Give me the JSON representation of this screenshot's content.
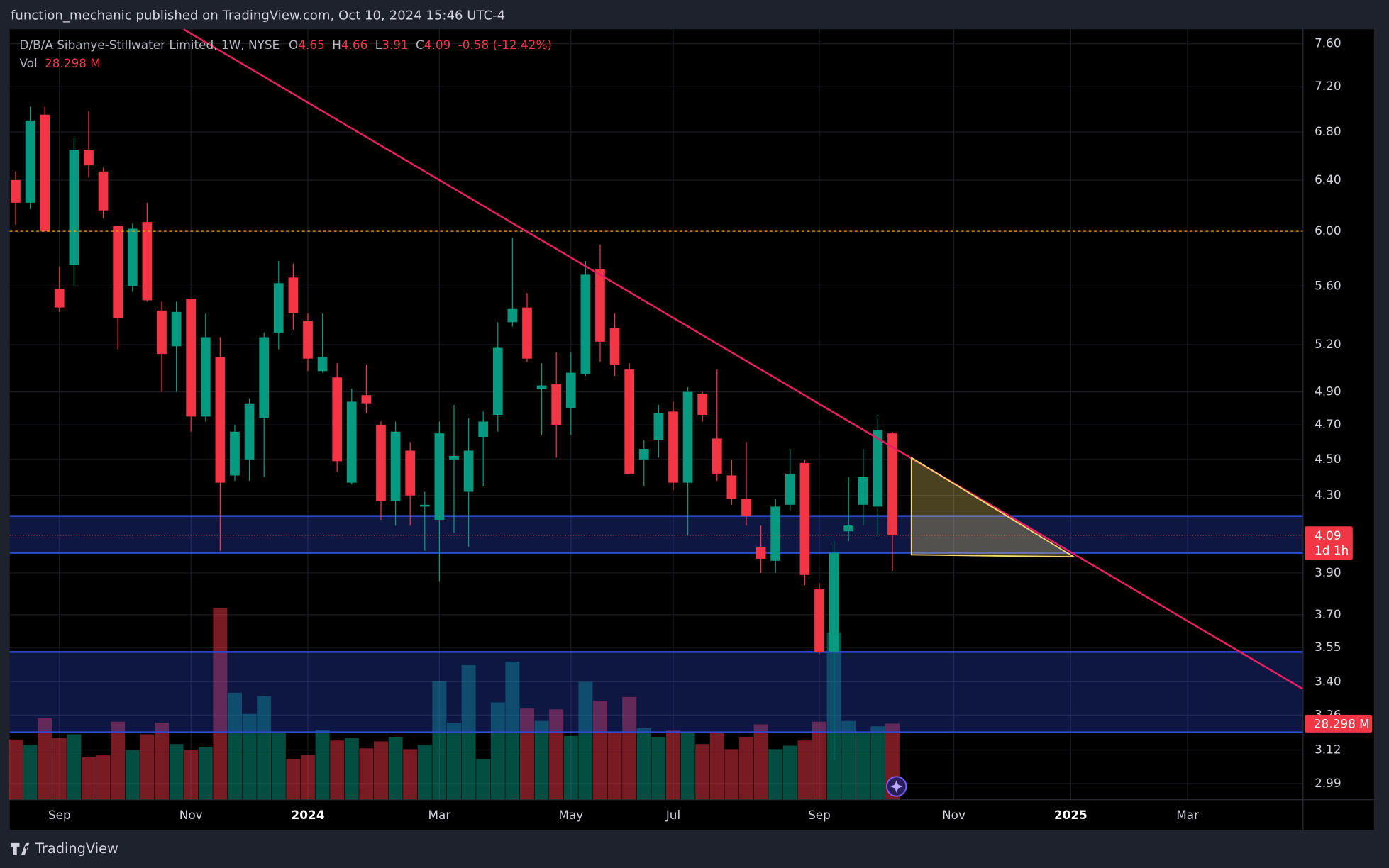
{
  "chart_data": {
    "type": "candlestick",
    "published": "function_mechanic published on TradingView.com, Oct 10, 2024 15:46 UTC-4",
    "legend": {
      "symbol": "D/B/A Sibanye-Stillwater Limited, 1W, NYSE",
      "ohlc_labels": [
        "O",
        "H",
        "L",
        "C"
      ],
      "change": "-0.58 (-12.42%)",
      "vol_label": "Vol",
      "vol_value_label": "28.298 M"
    },
    "countdown": "1d 1h",
    "brand": "TradingView",
    "up_color": "#089981",
    "down_color": "#f23645",
    "log_scale": true,
    "grid": true,
    "ylim": [
      2.93,
      7.74
    ],
    "yticks": [
      {
        "value": 7.6,
        "label": "7.60"
      },
      {
        "value": 7.2,
        "label": "7.20"
      },
      {
        "value": 6.8,
        "label": "6.80"
      },
      {
        "value": 6.4,
        "label": "6.40"
      },
      {
        "value": 6.0,
        "label": "6.00"
      },
      {
        "value": 5.6,
        "label": "5.60"
      },
      {
        "value": 5.2,
        "label": "5.20"
      },
      {
        "value": 4.9,
        "label": "4.90"
      },
      {
        "value": 4.7,
        "label": "4.70"
      },
      {
        "value": 4.5,
        "label": "4.50"
      },
      {
        "value": 4.3,
        "label": "4.30"
      },
      {
        "value": 3.9,
        "label": "3.90"
      },
      {
        "value": 3.7,
        "label": "3.70"
      },
      {
        "value": 3.55,
        "label": "3.55"
      },
      {
        "value": 3.4,
        "label": "3.40"
      },
      {
        "value": 3.26,
        "label": "3.26"
      },
      {
        "value": 3.12,
        "label": "3.12"
      },
      {
        "value": 2.99,
        "label": "2.99"
      }
    ],
    "xlim": [
      -0.4,
      88.1
    ],
    "xticks": [
      {
        "value": 3,
        "label": "Sep"
      },
      {
        "value": 12,
        "label": "Nov"
      },
      {
        "value": 20,
        "label": "2024"
      },
      {
        "value": 29,
        "label": "Mar"
      },
      {
        "value": 38,
        "label": "May"
      },
      {
        "value": 45,
        "label": "Jul"
      },
      {
        "value": 55,
        "label": "Sep"
      },
      {
        "value": 64.2,
        "label": "Nov"
      },
      {
        "value": 72.2,
        "label": "2025"
      },
      {
        "value": 80.2,
        "label": "Mar"
      }
    ],
    "candles": {
      "open": [
        6.4,
        6.22,
        6.95,
        5.58,
        5.75,
        6.65,
        6.47,
        6.04,
        5.6,
        6.07,
        5.43,
        5.19,
        5.51,
        4.75,
        5.12,
        4.41,
        4.5,
        4.74,
        5.28,
        5.66,
        5.36,
        5.03,
        4.99,
        4.37,
        4.88,
        4.7,
        4.27,
        4.55,
        4.24,
        4.17,
        4.5,
        4.32,
        4.63,
        4.76,
        5.35,
        5.45,
        4.92,
        4.95,
        4.8,
        5.01,
        5.72,
        5.31,
        5.04,
        4.5,
        4.61,
        4.78,
        4.37,
        4.89,
        4.62,
        4.41,
        4.28,
        4.03,
        3.96,
        4.25,
        4.48,
        3.82,
        3.53,
        4.11,
        4.25,
        4.24,
        4.65
      ],
      "high": [
        6.47,
        7.02,
        7.02,
        5.74,
        6.75,
        6.98,
        6.5,
        6.04,
        6.06,
        6.22,
        5.49,
        5.49,
        5.51,
        5.41,
        5.25,
        4.7,
        4.86,
        5.28,
        5.78,
        5.76,
        5.41,
        5.41,
        5.08,
        4.92,
        5.07,
        4.72,
        4.72,
        4.6,
        4.32,
        4.72,
        4.82,
        4.74,
        4.78,
        5.35,
        5.95,
        5.55,
        5.08,
        5.15,
        5.15,
        5.78,
        5.9,
        5.41,
        5.08,
        4.61,
        4.82,
        4.84,
        4.93,
        4.9,
        5.04,
        4.5,
        4.6,
        4.14,
        4.28,
        4.56,
        4.5,
        3.85,
        4.06,
        4.4,
        4.56,
        4.76,
        4.66
      ],
      "low": [
        6.05,
        6.17,
        6.0,
        5.42,
        5.6,
        6.42,
        6.1,
        5.17,
        5.56,
        5.49,
        4.9,
        4.9,
        4.66,
        4.72,
        4.01,
        4.38,
        4.38,
        4.4,
        5.17,
        5.3,
        5.03,
        5.02,
        4.43,
        4.36,
        4.77,
        4.17,
        4.14,
        4.14,
        4.01,
        3.86,
        4.1,
        4.03,
        4.35,
        4.66,
        5.32,
        5.09,
        4.64,
        4.51,
        4.64,
        5.0,
        5.09,
        5.0,
        4.42,
        4.35,
        4.51,
        4.33,
        4.09,
        4.72,
        4.38,
        4.25,
        4.14,
        3.9,
        3.9,
        4.22,
        3.84,
        3.52,
        3.08,
        4.06,
        4.14,
        4.09,
        3.91
      ],
      "close": [
        6.22,
        6.9,
        6.0,
        5.45,
        6.65,
        6.52,
        6.16,
        5.38,
        6.02,
        5.5,
        5.14,
        5.42,
        4.75,
        5.25,
        4.37,
        4.66,
        4.83,
        5.25,
        5.62,
        5.41,
        5.11,
        5.12,
        4.49,
        4.84,
        4.83,
        4.27,
        4.66,
        4.3,
        4.25,
        4.65,
        4.52,
        4.55,
        4.72,
        5.18,
        5.44,
        5.11,
        4.94,
        4.7,
        5.02,
        5.68,
        5.22,
        5.07,
        4.42,
        4.56,
        4.77,
        4.37,
        4.9,
        4.76,
        4.42,
        4.28,
        4.19,
        3.97,
        4.24,
        4.42,
        3.89,
        3.53,
        4.0,
        4.14,
        4.4,
        4.67,
        4.09
      ]
    },
    "volume": [
      22.4,
      20.4,
      30.3,
      23.0,
      24.3,
      15.8,
      16.5,
      29.0,
      18.4,
      24.3,
      28.6,
      20.7,
      18.4,
      19.7,
      71.4,
      39.8,
      31.9,
      38.5,
      25.0,
      15.1,
      16.8,
      26.0,
      22.0,
      23.0,
      19.1,
      21.7,
      23.4,
      18.8,
      20.4,
      44.1,
      28.6,
      50.0,
      15.1,
      36.2,
      51.3,
      33.9,
      29.3,
      33.6,
      23.7,
      43.8,
      36.8,
      25.3,
      38.2,
      26.6,
      23.4,
      25.7,
      24.7,
      20.7,
      24.7,
      18.8,
      23.4,
      28.0,
      18.8,
      20.1,
      22.0,
      29.0,
      62.2,
      29.3,
      25.0,
      27.3,
      28.298
    ],
    "volume_lim": [
      0,
      80
    ],
    "drawings": {
      "trendline": {
        "x": [
          11.5,
          88.06
        ],
        "y": [
          7.74,
          3.37
        ],
        "color": "#e91e63"
      },
      "hline": {
        "y": 6.0,
        "color": "#f7a21b"
      },
      "zones": [
        {
          "y": [
            4.0,
            4.19
          ]
        },
        {
          "y": [
            3.19,
            3.53
          ]
        }
      ],
      "zone_color": "#2e4bd6",
      "triangle": {
        "x": [
          61.3,
          61.3,
          72.4
        ],
        "y": [
          4.51,
          3.99,
          3.98
        ],
        "color": "#f5d76e"
      }
    }
  }
}
